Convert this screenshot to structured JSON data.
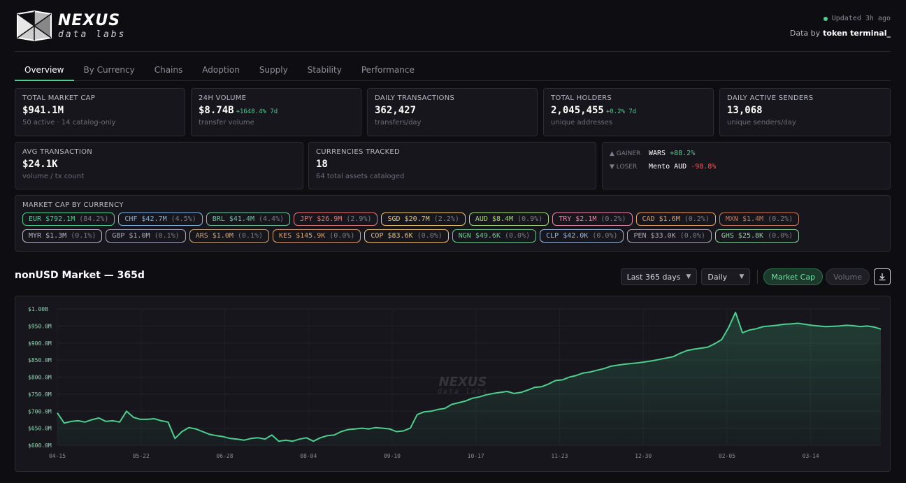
{
  "brand": {
    "name": "NEXUS",
    "subtitle": "data labs"
  },
  "status": {
    "updated": "Updated 3h ago",
    "data_by_label": "Data by",
    "data_by_source": "token terminal_"
  },
  "tabs": [
    {
      "label": "Overview",
      "active": true
    },
    {
      "label": "By Currency"
    },
    {
      "label": "Chains"
    },
    {
      "label": "Adoption"
    },
    {
      "label": "Supply"
    },
    {
      "label": "Stability"
    },
    {
      "label": "Performance"
    }
  ],
  "stats": {
    "market_cap": {
      "label": "TOTAL MARKET CAP",
      "value": "$941.1M",
      "sub": "50 active · 14 catalog-only"
    },
    "volume": {
      "label": "24H VOLUME",
      "value": "$8.74B",
      "change": "+1648.4% 7d",
      "sub": "transfer volume"
    },
    "transactions": {
      "label": "DAILY TRANSACTIONS",
      "value": "362,427",
      "sub": "transfers/day"
    },
    "holders": {
      "label": "TOTAL HOLDERS",
      "value": "2,045,455",
      "change": "+0.2% 7d",
      "sub": "unique addresses"
    },
    "senders": {
      "label": "DAILY ACTIVE SENDERS",
      "value": "13,068",
      "sub": "unique senders/day"
    },
    "avg_tx": {
      "label": "AVG TRANSACTION",
      "value": "$24.1K",
      "sub": "volume / tx count"
    },
    "currencies": {
      "label": "CURRENCIES TRACKED",
      "value": "18",
      "sub": "64 total assets cataloged"
    },
    "gainer": {
      "label": "▲ GAINER",
      "name": "WARS",
      "value": "+88.2%"
    },
    "loser": {
      "label": "▼ LOSER",
      "name": "Mento AUD",
      "value": "-98.8%"
    }
  },
  "market_cap_by_currency": {
    "label": "MARKET CAP BY CURRENCY",
    "chips": [
      {
        "text": "EUR $792.1M",
        "pct": "(84.2%)",
        "color": "#4ccf8f"
      },
      {
        "text": "CHF $42.7M",
        "pct": "(4.5%)",
        "color": "#7fb2e0"
      },
      {
        "text": "BRL $41.4M",
        "pct": "(4.4%)",
        "color": "#6fc2a0"
      },
      {
        "text": "JPY $26.9M",
        "pct": "(2.9%)",
        "color": "#e07a7a"
      },
      {
        "text": "SGD $20.7M",
        "pct": "(2.2%)",
        "color": "#e8c46a"
      },
      {
        "text": "AUD $8.4M",
        "pct": "(0.9%)",
        "color": "#a8d878"
      },
      {
        "text": "TRY $2.1M",
        "pct": "(0.2%)",
        "color": "#e08aa8"
      },
      {
        "text": "CAD $1.6M",
        "pct": "(0.2%)",
        "color": "#e8a060"
      },
      {
        "text": "MXN $1.4M",
        "pct": "(0.2%)",
        "color": "#c87a5a"
      },
      {
        "text": "MYR $1.3M",
        "pct": "(0.1%)",
        "color": "#b8b8c8"
      },
      {
        "text": "GBP $1.0M",
        "pct": "(0.1%)",
        "color": "#a8a8c0"
      },
      {
        "text": "ARS $1.0M",
        "pct": "(0.1%)",
        "color": "#c8a880"
      },
      {
        "text": "KES $145.9K",
        "pct": "(0.0%)",
        "color": "#d8a070"
      },
      {
        "text": "COP $83.6K",
        "pct": "(0.0%)",
        "color": "#e8c070"
      },
      {
        "text": "NGN $49.6K",
        "pct": "(0.0%)",
        "color": "#70c890"
      },
      {
        "text": "CLP $42.0K",
        "pct": "(0.0%)",
        "color": "#a0b8d8"
      },
      {
        "text": "PEN $33.0K",
        "pct": "(0.0%)",
        "color": "#b0a8b8"
      },
      {
        "text": "GHS $25.8K",
        "pct": "(0.0%)",
        "color": "#90d0a0"
      }
    ]
  },
  "chart_section": {
    "title": "nonUSD Market — 365d",
    "range_select": "Last 365 days",
    "interval_select": "Daily",
    "toggle_market_cap": "Market Cap",
    "toggle_volume": "Volume",
    "download_icon": "download-icon",
    "watermark": "NEXUS",
    "watermark_sub": "data labs"
  },
  "chart_data": {
    "type": "area",
    "color": "#4ccf8f",
    "ylim": [
      600,
      1000
    ],
    "ytick_labels": [
      "$1.00B",
      "$950.0M",
      "$900.0M",
      "$850.0M",
      "$800.0M",
      "$750.0M",
      "$700.0M",
      "$650.0M",
      "$600.0M"
    ],
    "yticks": [
      1000,
      950,
      900,
      850,
      800,
      750,
      700,
      650,
      600
    ],
    "xtick_labels": [
      "04-15",
      "05-22",
      "06-28",
      "08-04",
      "09-10",
      "10-17",
      "11-23",
      "12-30",
      "02-05",
      "03-14"
    ],
    "xtick_index": [
      0,
      37,
      74,
      111,
      148,
      185,
      222,
      259,
      296,
      333
    ],
    "series": [
      {
        "values": [
          695,
          665,
          670,
          672,
          668,
          675,
          680,
          670,
          672,
          668,
          700,
          682,
          676,
          676,
          678,
          672,
          668,
          620,
          640,
          652,
          648,
          640,
          632,
          628,
          625,
          620,
          618,
          615,
          620,
          622,
          618,
          630,
          612,
          615,
          612,
          618,
          622,
          612,
          622,
          628,
          630,
          640,
          646,
          648,
          650,
          648,
          652,
          650,
          648,
          640,
          642,
          650,
          690,
          698,
          700,
          705,
          708,
          720,
          725,
          730,
          738,
          742,
          748,
          752,
          755,
          758,
          752,
          755,
          762,
          770,
          772,
          780,
          790,
          792,
          800,
          805,
          812,
          815,
          820,
          825,
          832,
          835,
          838,
          840,
          842,
          845,
          848,
          852,
          856,
          860,
          870,
          878,
          882,
          885,
          888,
          898,
          910,
          945,
          990,
          930,
          938,
          942,
          948,
          950,
          952,
          955,
          956,
          958,
          955,
          952,
          950,
          948,
          949,
          950,
          952,
          951,
          948,
          950,
          947,
          941
        ]
      }
    ]
  }
}
